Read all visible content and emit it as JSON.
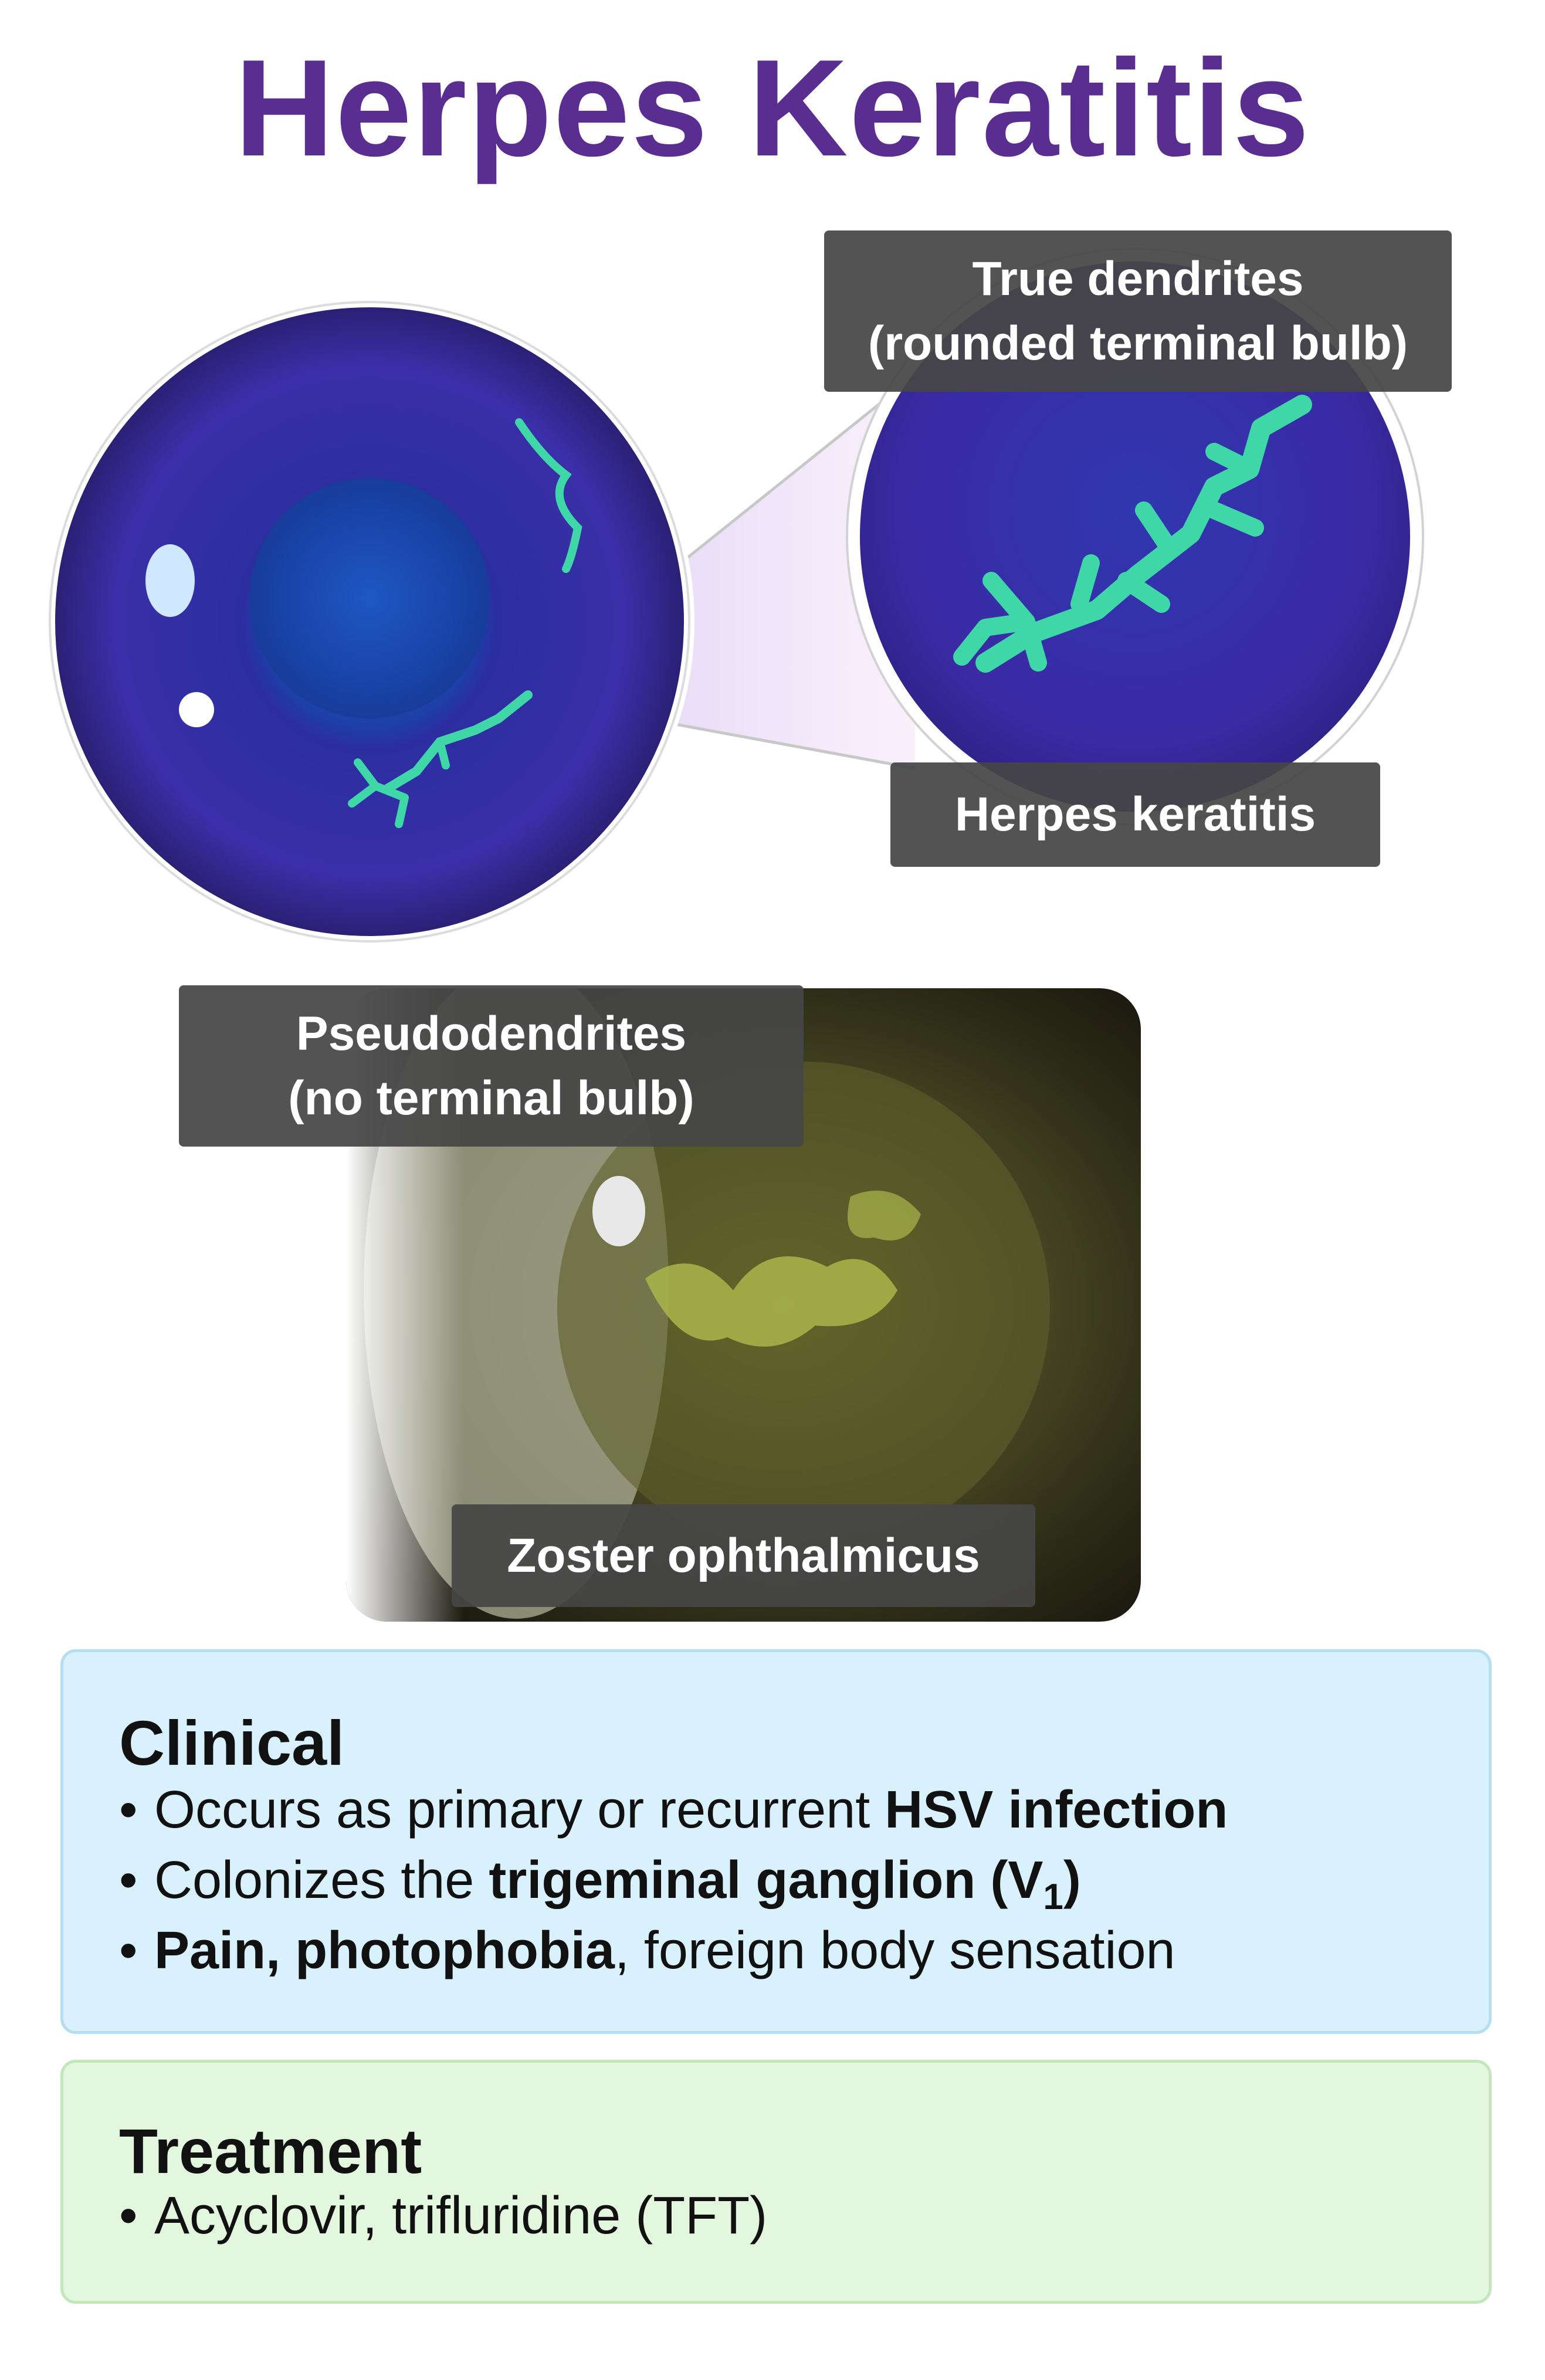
{
  "title": "Herpes Keratitis",
  "colors": {
    "title": "#5a2d91",
    "clinical_bg": "#d9f1fc",
    "clinical_border": "#b5def0",
    "treatment_bg": "#e3f7df",
    "treatment_border": "#c3e6bd"
  },
  "labels": {
    "true_dendrites": [
      "True dendrites",
      "(rounded terminal bulb)"
    ],
    "herpes_keratitis": "Herpes keratitis",
    "pseudodendrites": [
      "Pseudodendrites",
      "(no terminal bulb)"
    ],
    "zoster": "Zoster ophthalmicus"
  },
  "clinical": {
    "heading": "Clinical",
    "b1_pre": "Occurs as primary or recurrent ",
    "b1_bold": "HSV infection",
    "b2_pre": "Colonizes the ",
    "b2_bold": "trigeminal ganglion (V",
    "b2_sub": "1",
    "b2_close": ")",
    "b3_bold": "Pain, photophobia",
    "b3_post": ", foreign body sensation"
  },
  "treatment": {
    "heading": "Treatment",
    "b1": "Acyclovir, trifluridine (TFT)"
  }
}
